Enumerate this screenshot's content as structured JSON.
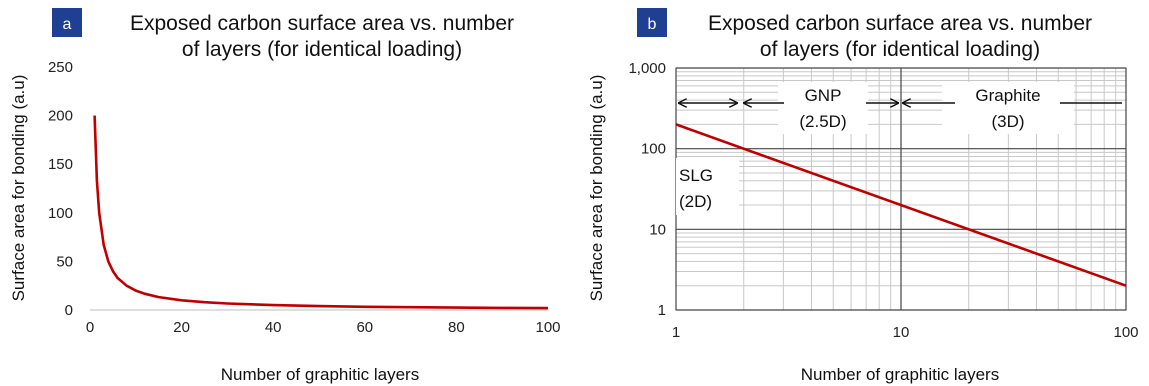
{
  "chart_data": [
    {
      "type": "line",
      "panel_label": "a",
      "title_line1": "Exposed carbon surface area vs. number",
      "title_line2": "of layers (for identical loading)",
      "xlabel": "Number  of graphitic layers",
      "ylabel": "Surface area for bonding (a.u)",
      "xlim": [
        0,
        100
      ],
      "ylim": [
        0,
        250
      ],
      "x_ticks": [
        0,
        20,
        40,
        60,
        80,
        100
      ],
      "y_ticks": [
        0,
        50,
        100,
        150,
        200,
        250
      ],
      "grid": false,
      "series": [
        {
          "x": [
            1,
            1.5,
            2,
            3,
            4,
            5,
            6,
            8,
            10,
            12,
            15,
            20,
            25,
            30,
            40,
            50,
            60,
            70,
            80,
            90,
            100
          ],
          "y": [
            200,
            133,
            100,
            67,
            50,
            40,
            33,
            25,
            20,
            16.7,
            13.3,
            10,
            8,
            6.7,
            5,
            4,
            3.3,
            2.9,
            2.5,
            2.2,
            2
          ],
          "color": "#c00000"
        }
      ]
    },
    {
      "type": "line",
      "panel_label": "b",
      "title_line1": "Exposed carbon surface area vs. number",
      "title_line2": "of layers (for identical loading)",
      "xlabel": "Number  of graphitic layers",
      "ylabel": "Surface area for bonding (a.u)",
      "x_scale": "log",
      "y_scale": "log",
      "xlim": [
        1,
        100
      ],
      "ylim": [
        1,
        1000
      ],
      "x_ticks": [
        1,
        10,
        100
      ],
      "x_tick_labels": [
        "1",
        "10",
        "100"
      ],
      "y_ticks": [
        1,
        10,
        100,
        1000
      ],
      "y_tick_labels": [
        "1",
        "10",
        "100",
        "1,000"
      ],
      "grid": true,
      "series": [
        {
          "x": [
            1,
            100
          ],
          "y": [
            200,
            2
          ],
          "color": "#c00000"
        }
      ],
      "annotations": [
        {
          "line1": "SLG",
          "line2": "(2D)"
        },
        {
          "line1": "GNP",
          "line2": "(2.5D)"
        },
        {
          "line1": "Graphite",
          "line2": "(3D)"
        }
      ]
    }
  ]
}
